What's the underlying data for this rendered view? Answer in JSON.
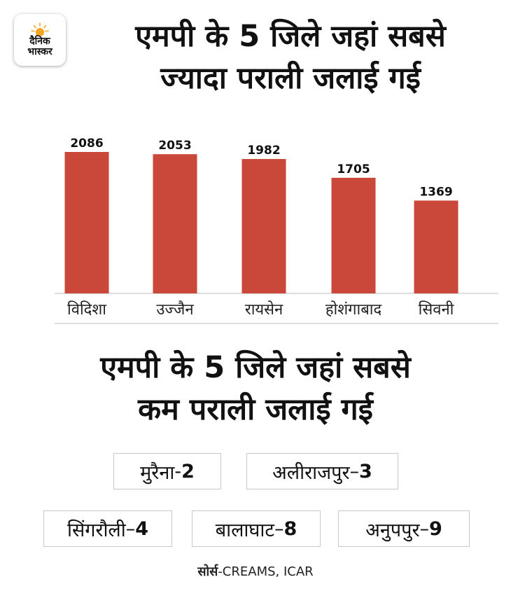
{
  "logo": {
    "line1": "दैनिक",
    "line2": "भास्कर"
  },
  "title_top": {
    "line1": "एमपी के 5 जिले जहां सबसे",
    "line2": "ज्यादा पराली जलाई गई"
  },
  "chart_data": {
    "type": "bar",
    "categories": [
      "विदिशा",
      "उज्जैन",
      "रायसेन",
      "होशंगाबाद",
      "सिवनी"
    ],
    "values": [
      2086,
      2053,
      1982,
      1705,
      1369
    ],
    "title": "एमपी के 5 जिले जहां सबसे ज्यादा पराली जलाई गई",
    "xlabel": "",
    "ylabel": "",
    "ylim": [
      0,
      2200
    ],
    "bar_color": "#c9483a",
    "grid": false
  },
  "title_bottom": {
    "line1": "एमपी के 5 जिले जहां सबसे",
    "line2": "कम पराली जलाई गई"
  },
  "least": [
    {
      "name": "मुरैना",
      "sep": "- ",
      "value": "2"
    },
    {
      "name": "अलीराजपुर",
      "sep": "–",
      "value": "3"
    },
    {
      "name": "सिंगरौली",
      "sep": "–",
      "value": "4"
    },
    {
      "name": "बालाघाट",
      "sep": "–",
      "value": "8"
    },
    {
      "name": "अनुपपुर",
      "sep": "–",
      "value": "9"
    }
  ],
  "source": {
    "label": "सोर्स",
    "text": "-CREAMS, ICAR"
  },
  "colors": {
    "accent": "#c9483a",
    "sun": "#f5a623",
    "axis": "#bdbdbd"
  }
}
